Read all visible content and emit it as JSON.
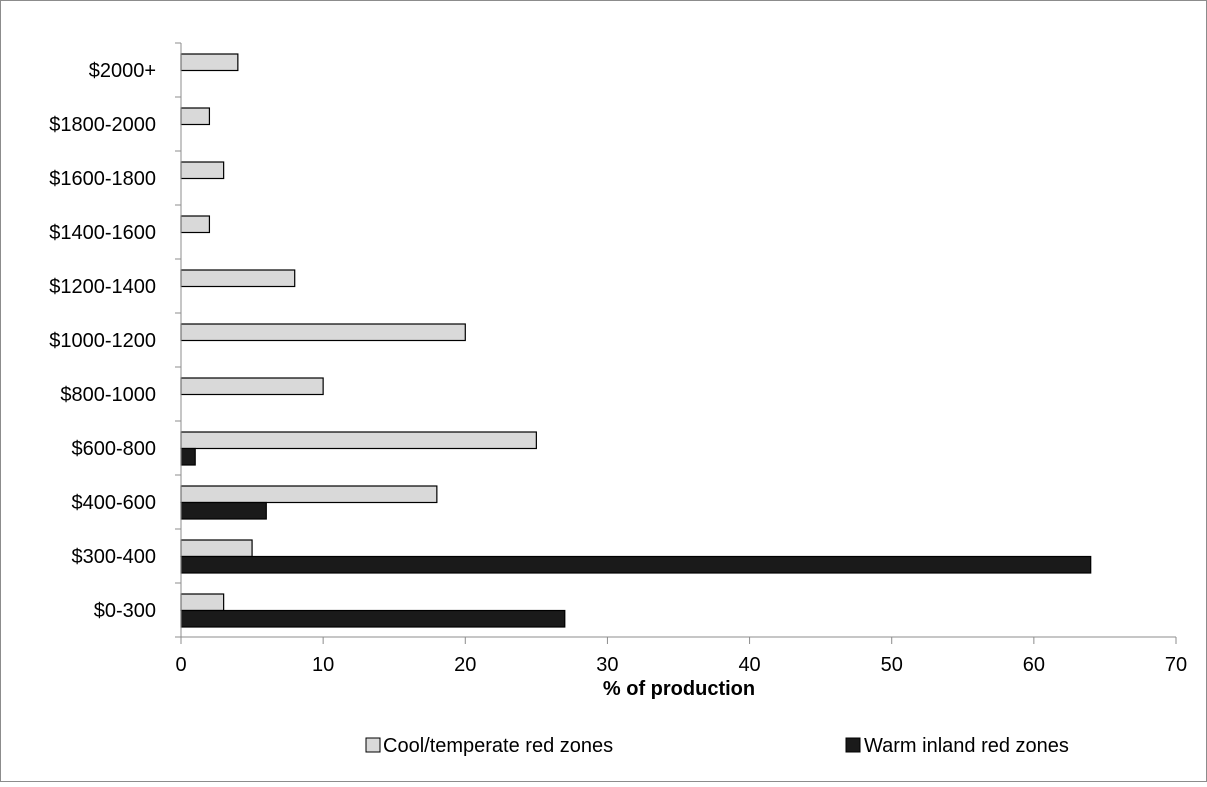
{
  "chart_data": {
    "type": "bar",
    "orientation": "horizontal",
    "categories": [
      "$0-300",
      "$300-400",
      "$400-600",
      "$600-800",
      "$800-1000",
      "$1000-1200",
      "$1200-1400",
      "$1400-1600",
      "$1600-1800",
      "$1800-2000",
      "$2000+"
    ],
    "series": [
      {
        "name": "Cool/temperate red zones",
        "values": [
          3,
          5,
          18,
          25,
          10,
          20,
          8,
          2,
          3,
          2,
          4
        ],
        "color": "#d9d9d9"
      },
      {
        "name": "Warm inland red zones",
        "values": [
          27,
          64,
          6,
          1,
          0,
          0,
          0,
          0,
          0,
          0,
          0
        ],
        "color": "#1a1a1a"
      }
    ],
    "title": "",
    "xlabel": "% of production",
    "ylabel": "",
    "xlim": [
      0,
      70
    ],
    "xticks": [
      "0",
      "10",
      "20",
      "30",
      "40",
      "50",
      "60",
      "70"
    ],
    "grid": false,
    "legend": "bottom"
  }
}
